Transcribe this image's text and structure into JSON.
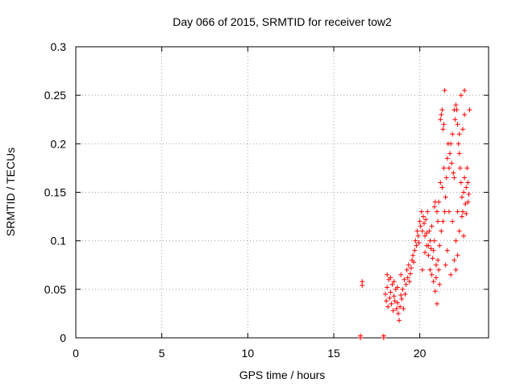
{
  "chart_data": {
    "type": "scatter",
    "title": "Day 066 of 2015, SRMTID for receiver tow2",
    "xlabel": "GPS time / hours",
    "ylabel": "SRMTID / TECUs",
    "xlim": [
      0,
      24
    ],
    "ylim": [
      0,
      0.3
    ],
    "x_ticks": [
      0,
      5,
      10,
      15,
      20
    ],
    "x_tick_labels": [
      "0",
      "5",
      "10",
      "15",
      "20"
    ],
    "y_ticks": [
      0,
      0.05,
      0.1,
      0.15,
      0.2,
      0.25,
      0.3
    ],
    "y_tick_labels": [
      "0",
      "0.05",
      "0.1",
      "0.15",
      "0.2",
      "0.25",
      "0.3"
    ],
    "grid": true,
    "marker": "plus",
    "series": [
      {
        "name": "SRMTID",
        "color": "#ff0000",
        "points": [
          [
            16.55,
            0.0
          ],
          [
            16.55,
            0.002
          ],
          [
            17.9,
            0.0
          ],
          [
            17.9,
            0.002
          ],
          [
            16.65,
            0.058
          ],
          [
            16.65,
            0.054
          ],
          [
            18.0,
            0.045
          ],
          [
            18.05,
            0.038
          ],
          [
            18.1,
            0.052
          ],
          [
            18.15,
            0.032
          ],
          [
            18.2,
            0.06
          ],
          [
            18.25,
            0.041
          ],
          [
            18.3,
            0.047
          ],
          [
            18.35,
            0.035
          ],
          [
            18.4,
            0.055
          ],
          [
            18.45,
            0.028
          ],
          [
            18.5,
            0.043
          ],
          [
            18.55,
            0.038
          ],
          [
            18.6,
            0.05
          ],
          [
            18.65,
            0.03
          ],
          [
            18.7,
            0.036
          ],
          [
            18.75,
            0.025
          ],
          [
            18.8,
            0.018
          ],
          [
            18.85,
            0.032
          ],
          [
            18.9,
            0.044
          ],
          [
            18.95,
            0.04
          ],
          [
            19.0,
            0.05
          ],
          [
            19.05,
            0.03
          ],
          [
            19.1,
            0.06
          ],
          [
            19.15,
            0.045
          ],
          [
            19.2,
            0.055
          ],
          [
            18.1,
            0.065
          ],
          [
            18.3,
            0.062
          ],
          [
            18.5,
            0.058
          ],
          [
            18.7,
            0.052
          ],
          [
            18.9,
            0.065
          ],
          [
            19.25,
            0.07
          ],
          [
            19.3,
            0.062
          ],
          [
            19.35,
            0.075
          ],
          [
            19.4,
            0.058
          ],
          [
            19.45,
            0.066
          ],
          [
            19.5,
            0.072
          ],
          [
            19.55,
            0.08
          ],
          [
            19.6,
            0.085
          ],
          [
            19.65,
            0.078
          ],
          [
            19.7,
            0.09
          ],
          [
            19.75,
            0.1
          ],
          [
            19.8,
            0.095
          ],
          [
            19.85,
            0.11
          ],
          [
            19.9,
            0.105
          ],
          [
            19.95,
            0.098
          ],
          [
            20.0,
            0.12
          ],
          [
            20.05,
            0.115
          ],
          [
            20.1,
            0.13
          ],
          [
            20.15,
            0.11
          ],
          [
            20.2,
            0.125
          ],
          [
            20.25,
            0.118
          ],
          [
            20.3,
            0.105
          ],
          [
            20.35,
            0.122
          ],
          [
            20.4,
            0.095
          ],
          [
            20.45,
            0.13
          ],
          [
            20.5,
            0.085
          ],
          [
            20.55,
            0.11
          ],
          [
            20.6,
            0.07
          ],
          [
            20.65,
            0.092
          ],
          [
            20.7,
            0.065
          ],
          [
            20.75,
            0.082
          ],
          [
            20.8,
            0.058
          ],
          [
            20.85,
            0.1
          ],
          [
            20.9,
            0.048
          ],
          [
            20.95,
            0.075
          ],
          [
            21.0,
            0.035
          ],
          [
            20.95,
            0.062
          ],
          [
            20.8,
            0.09
          ],
          [
            20.6,
            0.1
          ],
          [
            20.4,
            0.108
          ],
          [
            21.05,
            0.12
          ],
          [
            21.1,
            0.14
          ],
          [
            21.15,
            0.095
          ],
          [
            21.2,
            0.16
          ],
          [
            21.25,
            0.11
          ],
          [
            21.3,
            0.155
          ],
          [
            21.35,
            0.12
          ],
          [
            21.4,
            0.175
          ],
          [
            21.45,
            0.13
          ],
          [
            21.5,
            0.145
          ],
          [
            21.55,
            0.165
          ],
          [
            21.6,
            0.185
          ],
          [
            21.65,
            0.2
          ],
          [
            21.7,
            0.175
          ],
          [
            21.75,
            0.19
          ],
          [
            21.8,
            0.2
          ],
          [
            21.85,
            0.18
          ],
          [
            21.9,
            0.21
          ],
          [
            21.95,
            0.17
          ],
          [
            22.0,
            0.165
          ],
          [
            21.2,
            0.225
          ],
          [
            21.3,
            0.235
          ],
          [
            21.4,
            0.22
          ],
          [
            21.25,
            0.23
          ],
          [
            21.35,
            0.215
          ],
          [
            22.05,
            0.225
          ],
          [
            22.1,
            0.24
          ],
          [
            22.15,
            0.235
          ],
          [
            22.2,
            0.22
          ],
          [
            22.25,
            0.2
          ],
          [
            22.3,
            0.19
          ],
          [
            22.35,
            0.175
          ],
          [
            22.4,
            0.16
          ],
          [
            22.45,
            0.145
          ],
          [
            22.5,
            0.13
          ],
          [
            22.55,
            0.15
          ],
          [
            22.6,
            0.165
          ],
          [
            22.65,
            0.138
          ],
          [
            22.7,
            0.155
          ],
          [
            22.75,
            0.175
          ],
          [
            22.8,
            0.16
          ],
          [
            22.85,
            0.148
          ],
          [
            22.9,
            0.235
          ],
          [
            22.5,
            0.215
          ],
          [
            22.6,
            0.23
          ],
          [
            22.4,
            0.25
          ],
          [
            22.6,
            0.255
          ],
          [
            21.45,
            0.255
          ],
          [
            22.0,
            0.235
          ],
          [
            22.3,
            0.21
          ],
          [
            21.7,
            0.13
          ],
          [
            21.9,
            0.12
          ],
          [
            22.1,
            0.1
          ],
          [
            22.2,
            0.085
          ],
          [
            22.3,
            0.11
          ],
          [
            22.0,
            0.08
          ],
          [
            21.8,
            0.065
          ],
          [
            21.6,
            0.09
          ],
          [
            21.5,
            0.075
          ],
          [
            22.1,
            0.07
          ],
          [
            22.2,
            0.13
          ],
          [
            22.45,
            0.125
          ],
          [
            22.7,
            0.128
          ],
          [
            22.8,
            0.14
          ],
          [
            22.55,
            0.105
          ],
          [
            21.0,
            0.13
          ],
          [
            21.05,
            0.08
          ],
          [
            21.1,
            0.07
          ],
          [
            21.15,
            0.055
          ],
          [
            20.7,
            0.115
          ],
          [
            20.85,
            0.135
          ],
          [
            20.9,
            0.14
          ],
          [
            20.3,
            0.088
          ],
          [
            20.5,
            0.095
          ],
          [
            20.15,
            0.07
          ]
        ]
      }
    ]
  }
}
